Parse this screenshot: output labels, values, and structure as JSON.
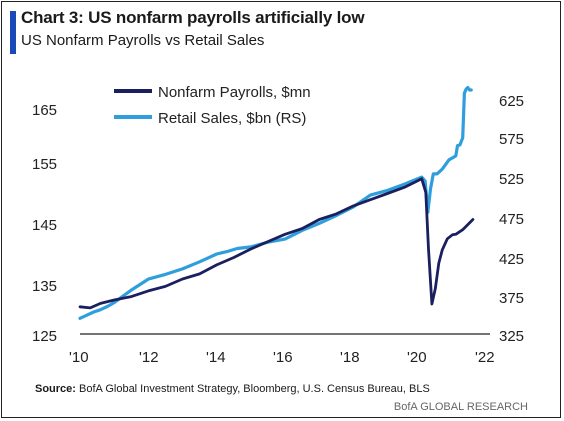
{
  "header": {
    "title": "Chart 3: US nonfarm payrolls artificially low",
    "subtitle": "US Nonfarm Payrolls vs Retail Sales"
  },
  "footer": {
    "source_label": "Source:",
    "source_text": "BofA Global Investment Strategy, Bloomberg, U.S. Census Bureau, BLS",
    "brand": "BofA GLOBAL RESEARCH"
  },
  "colors": {
    "payrolls": "#1b1f5e",
    "retail": "#2e9fdc",
    "accent": "#1a49b8"
  },
  "chart_data": {
    "type": "line",
    "x_ticks": [
      "'10",
      "'12",
      "'14",
      "'16",
      "'18",
      "'20",
      "'22"
    ],
    "x_tick_values": [
      2010,
      2012,
      2014,
      2016,
      2018,
      2020,
      2022
    ],
    "xlim": [
      2010,
      2022
    ],
    "y_left": {
      "ticks": [
        "125",
        "135",
        "145",
        "155",
        "165"
      ],
      "lim": [
        125,
        170
      ]
    },
    "y_right": {
      "ticks": [
        "325",
        "375",
        "425",
        "475",
        "525",
        "575",
        "625"
      ],
      "lim": [
        325,
        650
      ]
    },
    "legend_position": "top-left",
    "grid": false,
    "series": [
      {
        "name": "Nonfarm Payrolls, $mn",
        "axis": "left",
        "color": "#1b1f5e",
        "x": [
          2010.0,
          2010.3,
          2010.6,
          2011.0,
          2011.5,
          2012.0,
          2012.5,
          2013.0,
          2013.5,
          2014.0,
          2014.5,
          2015.0,
          2015.5,
          2016.0,
          2016.5,
          2017.0,
          2017.5,
          2018.0,
          2018.5,
          2019.0,
          2019.5,
          2020.0,
          2020.12,
          2020.2,
          2020.3,
          2020.4,
          2020.5,
          2020.6,
          2020.75,
          2020.9,
          2021.0,
          2021.2,
          2021.35,
          2021.5
        ],
        "y": [
          129.8,
          129.6,
          130.4,
          131.0,
          131.6,
          132.6,
          133.4,
          134.7,
          135.6,
          137.2,
          138.5,
          140.0,
          141.3,
          142.6,
          143.6,
          145.2,
          146.2,
          147.6,
          148.7,
          149.8,
          150.9,
          152.4,
          150.0,
          140.0,
          130.3,
          133.0,
          137.5,
          139.8,
          141.8,
          142.5,
          142.6,
          143.4,
          144.3,
          145.2
        ]
      },
      {
        "name": "Retail Sales, $bn (RS)",
        "axis": "right",
        "color": "#2e9fdc",
        "x": [
          2010.0,
          2010.2,
          2010.4,
          2010.6,
          2010.8,
          2011.0,
          2011.5,
          2012.0,
          2012.5,
          2013.0,
          2013.5,
          2014.0,
          2014.3,
          2014.6,
          2015.0,
          2015.5,
          2016.0,
          2016.5,
          2017.0,
          2017.5,
          2018.0,
          2018.5,
          2019.0,
          2019.5,
          2020.0,
          2020.1,
          2020.18,
          2020.26,
          2020.34,
          2020.45,
          2020.6,
          2020.8,
          2020.92,
          2021.0,
          2021.05,
          2021.12,
          2021.2,
          2021.25,
          2021.3,
          2021.35,
          2021.4,
          2021.45
        ],
        "y": [
          345,
          349,
          353,
          356,
          360,
          365,
          381,
          395,
          401,
          408,
          417,
          427,
          430,
          434,
          436,
          442,
          446,
          457,
          466,
          476,
          487,
          502,
          508,
          516,
          525,
          520,
          480,
          510,
          529,
          529,
          535,
          547,
          550,
          552,
          565,
          566,
          575,
          632,
          637,
          639,
          636,
          636
        ]
      }
    ]
  }
}
